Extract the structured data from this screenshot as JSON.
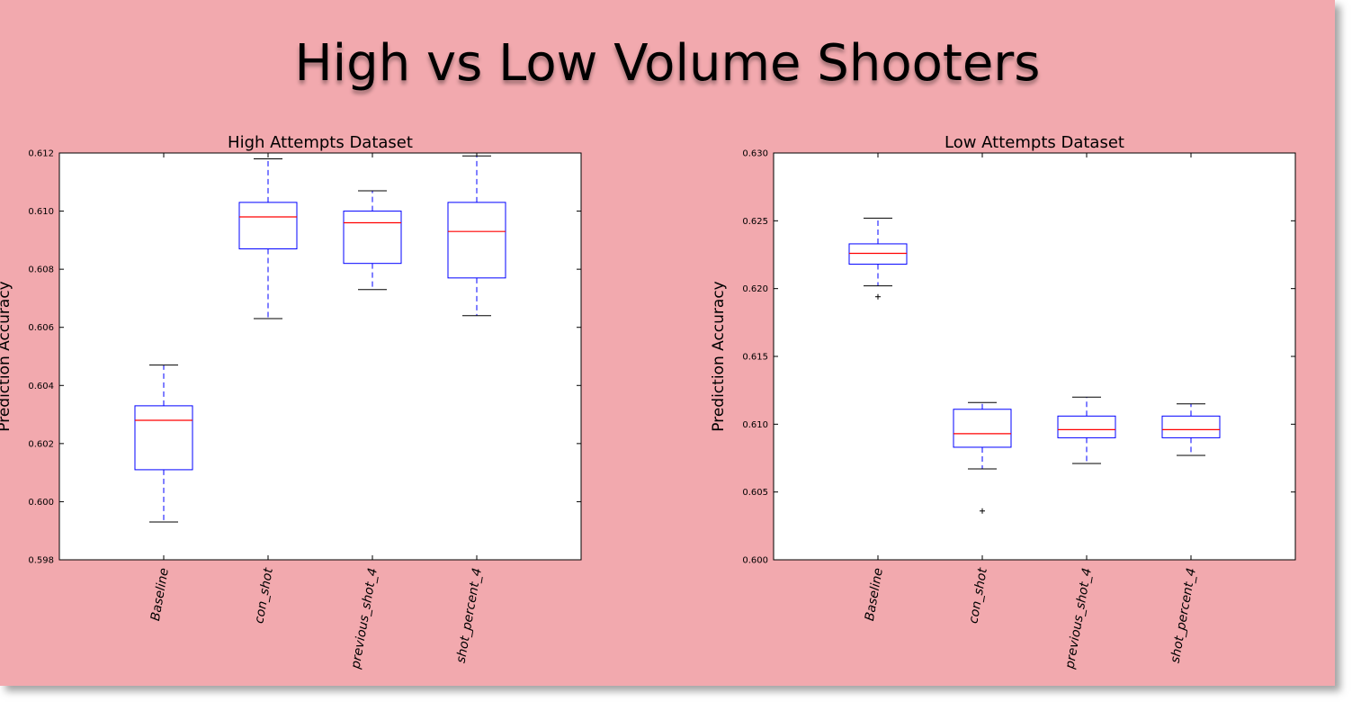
{
  "slide": {
    "title": "High vs Low Volume Shooters",
    "background": "#f2a9ae"
  },
  "colors": {
    "box": "#0000ff",
    "median": "#ff0000",
    "whisker": "#0000ff",
    "cap": "#000000"
  },
  "chart_data": [
    {
      "type": "box",
      "title": "High Attempts Dataset",
      "ylabel": "Prediction Accuracy",
      "ylim": [
        0.598,
        0.612
      ],
      "yticks": [
        "0.598",
        "0.600",
        "0.602",
        "0.604",
        "0.606",
        "0.608",
        "0.610",
        "0.612"
      ],
      "categories": [
        "Baseline",
        "con_shot",
        "previous_shot_4",
        "shot_percent_4"
      ],
      "boxes": [
        {
          "whisker_low": 0.5993,
          "q1": 0.6011,
          "median": 0.6028,
          "q3": 0.6033,
          "whisker_high": 0.6047,
          "outliers": []
        },
        {
          "whisker_low": 0.6063,
          "q1": 0.6087,
          "median": 0.6098,
          "q3": 0.6103,
          "whisker_high": 0.6118,
          "outliers": []
        },
        {
          "whisker_low": 0.6073,
          "q1": 0.6082,
          "median": 0.6096,
          "q3": 0.61,
          "whisker_high": 0.6107,
          "outliers": []
        },
        {
          "whisker_low": 0.6064,
          "q1": 0.6077,
          "median": 0.6093,
          "q3": 0.6103,
          "whisker_high": 0.6119,
          "outliers": []
        }
      ],
      "grid": false
    },
    {
      "type": "box",
      "title": "Low Attempts Dataset",
      "ylabel": "Prediction Accuracy",
      "ylim": [
        0.6,
        0.63
      ],
      "yticks": [
        "0.600",
        "0.605",
        "0.610",
        "0.615",
        "0.620",
        "0.625",
        "0.630"
      ],
      "categories": [
        "Baseline",
        "con_shot",
        "previous_shot_4",
        "shot_percent_4"
      ],
      "boxes": [
        {
          "whisker_low": 0.6202,
          "q1": 0.6218,
          "median": 0.6226,
          "q3": 0.6233,
          "whisker_high": 0.6252,
          "outliers": [
            0.6194
          ]
        },
        {
          "whisker_low": 0.6067,
          "q1": 0.6083,
          "median": 0.6093,
          "q3": 0.6111,
          "whisker_high": 0.6116,
          "outliers": [
            0.6036
          ]
        },
        {
          "whisker_low": 0.6071,
          "q1": 0.609,
          "median": 0.6096,
          "q3": 0.6106,
          "whisker_high": 0.612,
          "outliers": []
        },
        {
          "whisker_low": 0.6077,
          "q1": 0.609,
          "median": 0.6096,
          "q3": 0.6106,
          "whisker_high": 0.6115,
          "outliers": []
        }
      ],
      "grid": false
    }
  ]
}
